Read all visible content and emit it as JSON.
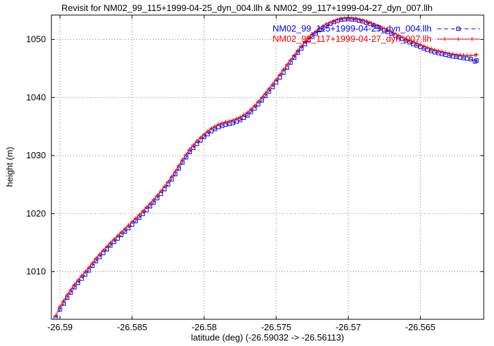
{
  "chart_data": {
    "type": "line",
    "title": "Revisit for NM02_99_115+1999-04-25_dyn_004.llh & NM02_99_117+1999-04-27_dyn_007.llh",
    "xlabel": "latitude (deg) (-26.59032 -> -26.56113)",
    "ylabel": "height (m)",
    "xlim": [
      -26.5906,
      -26.5606
    ],
    "ylim": [
      1001.8,
      1054.2
    ],
    "x_ticks": [
      -26.59,
      -26.585,
      -26.58,
      -26.575,
      -26.57,
      -26.565
    ],
    "x_tick_labels": [
      "-26.59",
      "-26.585",
      "-26.58",
      "-26.575",
      "-26.57",
      "-26.565"
    ],
    "y_ticks": [
      1010,
      1020,
      1030,
      1040,
      1050
    ],
    "y_tick_labels": [
      "1010",
      "1020",
      "1030",
      "1040",
      "1050"
    ],
    "grid": true,
    "legend_position": "top-right-inside",
    "background_color": "#ffffff",
    "grid_color": "#7f7f7f",
    "series": [
      {
        "name": "NM02_99_115+1999-04-25_dyn_004.llh",
        "color": "#0000ee",
        "marker": "square",
        "line_style": "dashed",
        "x": [
          -26.5903,
          -26.59,
          -26.5895,
          -26.589,
          -26.5885,
          -26.588,
          -26.5875,
          -26.587,
          -26.5865,
          -26.586,
          -26.5855,
          -26.585,
          -26.5845,
          -26.584,
          -26.5835,
          -26.583,
          -26.5825,
          -26.582,
          -26.5815,
          -26.581,
          -26.5805,
          -26.58,
          -26.5795,
          -26.579,
          -26.5785,
          -26.578,
          -26.5775,
          -26.577,
          -26.5765,
          -26.576,
          -26.5755,
          -26.575,
          -26.5745,
          -26.574,
          -26.5735,
          -26.573,
          -26.5725,
          -26.572,
          -26.5715,
          -26.571,
          -26.5705,
          -26.57,
          -26.5695,
          -26.569,
          -26.5685,
          -26.568,
          -26.5675,
          -26.567,
          -26.5665,
          -26.566,
          -26.5655,
          -26.565,
          -26.5645,
          -26.564,
          -26.5635,
          -26.563,
          -26.5625,
          -26.562,
          -26.5615,
          -26.5612,
          -26.5611
        ],
        "y": [
          1002.0,
          1003.5,
          1005.5,
          1007.3,
          1008.8,
          1010.2,
          1011.8,
          1013.2,
          1014.5,
          1015.7,
          1016.9,
          1018.1,
          1019.3,
          1020.6,
          1021.9,
          1023.4,
          1025.0,
          1026.8,
          1028.8,
          1030.6,
          1032.0,
          1033.2,
          1034.2,
          1034.9,
          1035.3,
          1035.6,
          1036.1,
          1036.9,
          1038.1,
          1039.5,
          1041.0,
          1042.6,
          1044.3,
          1046.0,
          1047.7,
          1049.2,
          1050.5,
          1051.6,
          1052.4,
          1053.0,
          1053.4,
          1053.5,
          1053.4,
          1053.1,
          1052.7,
          1052.2,
          1051.6,
          1051.0,
          1050.4,
          1049.8,
          1049.2,
          1048.7,
          1048.2,
          1047.8,
          1047.5,
          1047.2,
          1047.0,
          1046.8,
          1046.6,
          1046.2,
          1046.4
        ]
      },
      {
        "name": "NM02_99_117+1999-04-27_dyn_007.llh",
        "color": "#ee0000",
        "marker": "plus",
        "line_style": "solid",
        "x": [
          -26.5903,
          -26.59,
          -26.5895,
          -26.589,
          -26.5885,
          -26.588,
          -26.5875,
          -26.587,
          -26.5865,
          -26.586,
          -26.5855,
          -26.585,
          -26.5845,
          -26.584,
          -26.5835,
          -26.583,
          -26.5825,
          -26.582,
          -26.5815,
          -26.581,
          -26.5805,
          -26.58,
          -26.5795,
          -26.579,
          -26.5785,
          -26.578,
          -26.5775,
          -26.577,
          -26.5765,
          -26.576,
          -26.5755,
          -26.575,
          -26.5745,
          -26.574,
          -26.5735,
          -26.573,
          -26.5725,
          -26.572,
          -26.5715,
          -26.571,
          -26.5705,
          -26.57,
          -26.5695,
          -26.569,
          -26.5685,
          -26.568,
          -26.5675,
          -26.567,
          -26.5665,
          -26.566,
          -26.5655,
          -26.565,
          -26.5645,
          -26.564,
          -26.5635,
          -26.563,
          -26.5625,
          -26.562,
          -26.5615,
          -26.5612,
          -26.5611
        ],
        "y": [
          1002.4,
          1004.0,
          1006.0,
          1007.8,
          1009.3,
          1010.7,
          1012.3,
          1013.7,
          1015.0,
          1016.2,
          1017.4,
          1018.6,
          1019.8,
          1021.1,
          1022.4,
          1023.9,
          1025.5,
          1027.3,
          1029.3,
          1031.1,
          1032.5,
          1033.7,
          1034.7,
          1035.4,
          1035.8,
          1036.1,
          1036.6,
          1037.4,
          1038.6,
          1040.0,
          1041.5,
          1043.1,
          1044.8,
          1046.5,
          1048.1,
          1049.6,
          1050.9,
          1051.9,
          1052.7,
          1053.2,
          1053.6,
          1053.7,
          1053.6,
          1053.3,
          1052.9,
          1052.4,
          1051.9,
          1051.3,
          1050.7,
          1050.1,
          1049.6,
          1049.1,
          1048.6,
          1048.2,
          1047.9,
          1047.6,
          1047.4,
          1047.3,
          1047.2,
          1047.3,
          1047.4
        ]
      }
    ]
  }
}
